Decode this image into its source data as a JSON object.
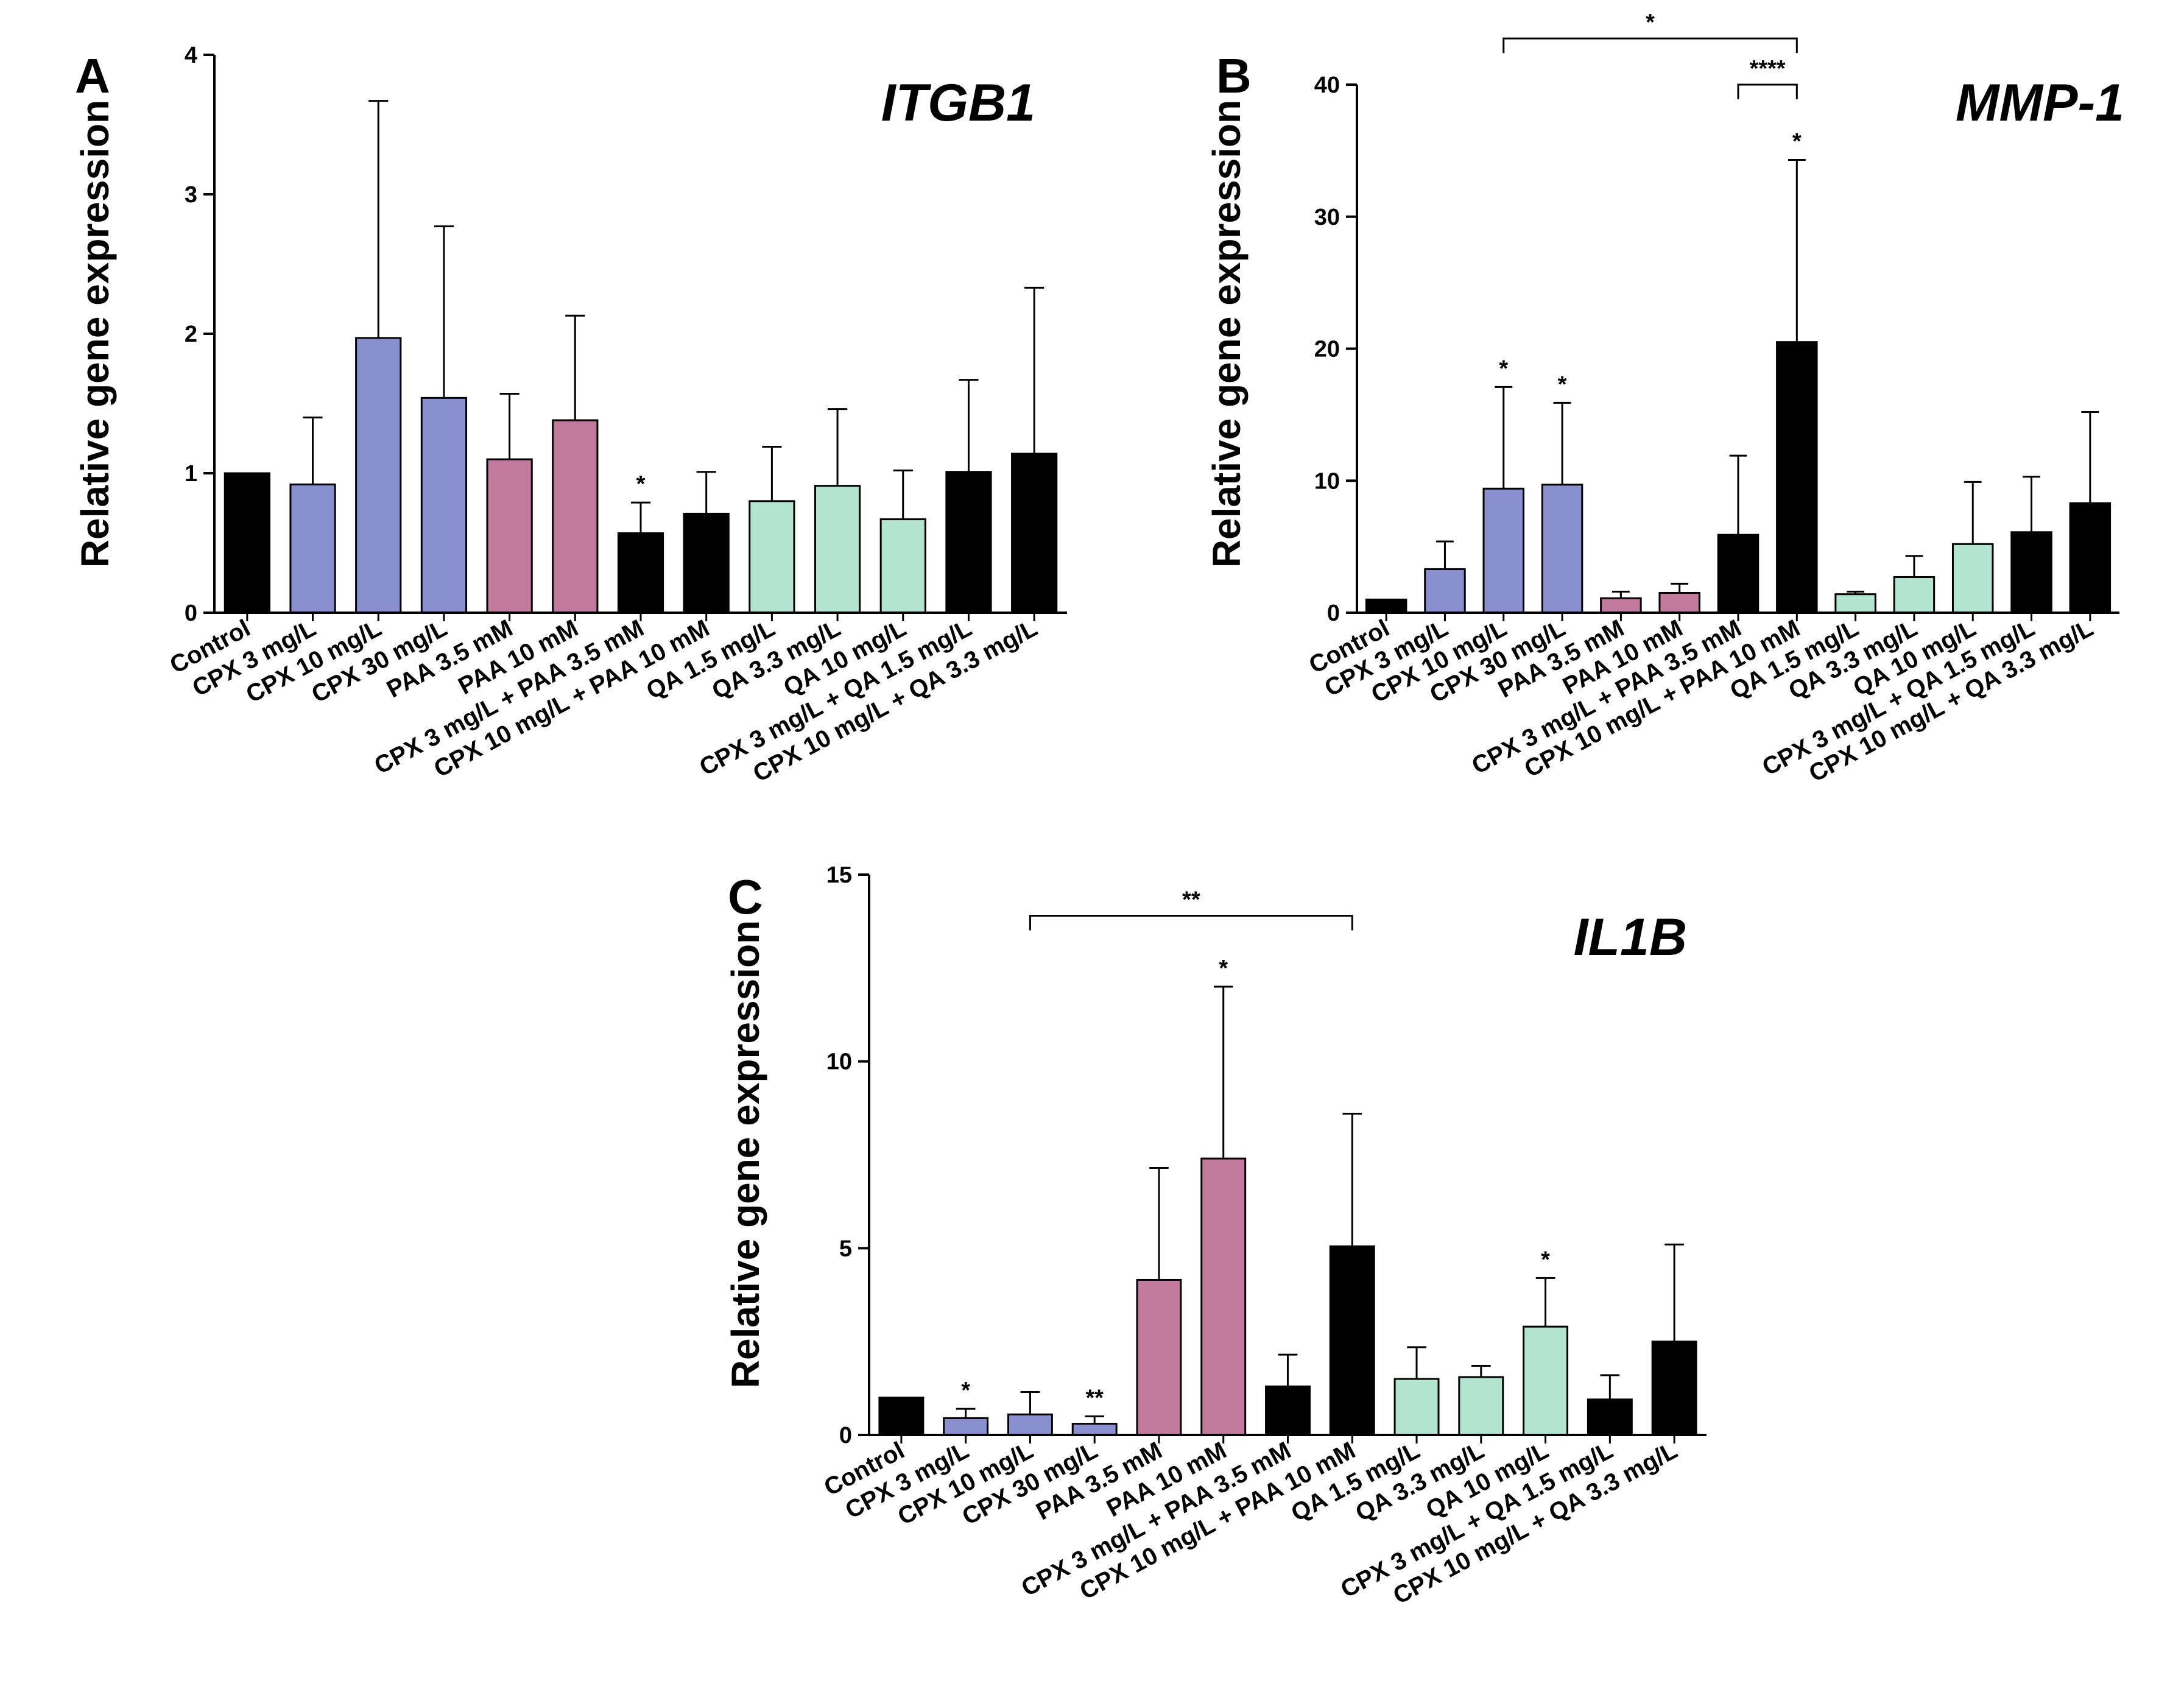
{
  "colors": {
    "black": "#000000",
    "blue": "#8A8FD0",
    "pink": "#C1799E",
    "mint": "#B2E4D0"
  },
  "categories": [
    "Control",
    "CPX 3 mg/L",
    "CPX 10 mg/L",
    "CPX 30 mg/L",
    "PAA 3.5 mM",
    "PAA 10 mM",
    "CPX 3 mg/L + PAA 3.5 mM",
    "CPX 10 mg/L + PAA 10 mM",
    "QA 1.5 mg/L",
    "QA 3.3 mg/L",
    "QA 10 mg/L",
    "CPX 3 mg/L + QA 1.5 mg/L",
    "CPX 10 mg/L + QA 3.3 mg/L"
  ],
  "bar_color_groups": [
    "black",
    "blue",
    "blue",
    "blue",
    "pink",
    "pink",
    "black",
    "black",
    "mint",
    "mint",
    "mint",
    "black",
    "black"
  ],
  "chart_data": [
    {
      "panel": "A",
      "type": "bar",
      "title": "ITGB1",
      "ylabel": "Relative gene expression",
      "xlabel": "",
      "ylim": [
        0,
        4
      ],
      "yticks": [
        0,
        1,
        2,
        3,
        4
      ],
      "values": [
        1.0,
        0.92,
        1.97,
        1.54,
        1.1,
        1.38,
        0.57,
        0.71,
        0.8,
        0.91,
        0.67,
        1.01,
        1.14
      ],
      "errors": [
        0,
        0.48,
        1.7,
        1.23,
        0.47,
        0.75,
        0.22,
        0.3,
        0.39,
        0.55,
        0.35,
        0.66,
        1.19
      ],
      "bar_annotations": [
        {
          "index": 6,
          "text": "*"
        }
      ],
      "brackets": []
    },
    {
      "panel": "B",
      "type": "bar",
      "title": "MMP-1",
      "ylabel": "Relative gene expression",
      "xlabel": "",
      "ylim": [
        0,
        40
      ],
      "yticks": [
        0,
        10,
        20,
        30,
        40
      ],
      "values": [
        1.0,
        3.3,
        9.4,
        9.7,
        1.1,
        1.5,
        5.9,
        20.5,
        1.4,
        2.7,
        5.2,
        6.1,
        8.3
      ],
      "errors": [
        0,
        2.1,
        7.7,
        6.2,
        0.5,
        0.7,
        6.0,
        13.8,
        0.2,
        1.6,
        4.7,
        4.2,
        6.9
      ],
      "bar_annotations": [
        {
          "index": 2,
          "text": "*"
        },
        {
          "index": 3,
          "text": "*"
        },
        {
          "index": 7,
          "text": "*"
        }
      ],
      "brackets": [
        {
          "from": 2,
          "to": 7,
          "text": "*",
          "y": 43.5
        },
        {
          "from": 6,
          "to": 7,
          "text": "****",
          "y": 40.0
        }
      ]
    },
    {
      "panel": "C",
      "type": "bar",
      "title": "IL1B",
      "ylabel": "Relative gene expression",
      "xlabel": "",
      "ylim": [
        0,
        15
      ],
      "yticks": [
        0,
        5,
        10,
        15
      ],
      "values": [
        1.0,
        0.45,
        0.55,
        0.3,
        4.15,
        7.4,
        1.3,
        5.05,
        1.5,
        1.55,
        2.9,
        0.95,
        2.5
      ],
      "errors": [
        0,
        0.25,
        0.6,
        0.2,
        3.0,
        4.6,
        0.85,
        3.55,
        0.85,
        0.3,
        1.3,
        0.65,
        2.6
      ],
      "bar_annotations": [
        {
          "index": 1,
          "text": "*"
        },
        {
          "index": 3,
          "text": "**"
        },
        {
          "index": 5,
          "text": "*"
        },
        {
          "index": 10,
          "text": "*"
        }
      ],
      "brackets": [
        {
          "from": 2,
          "to": 7,
          "text": "**",
          "y": 13.9
        }
      ]
    }
  ]
}
